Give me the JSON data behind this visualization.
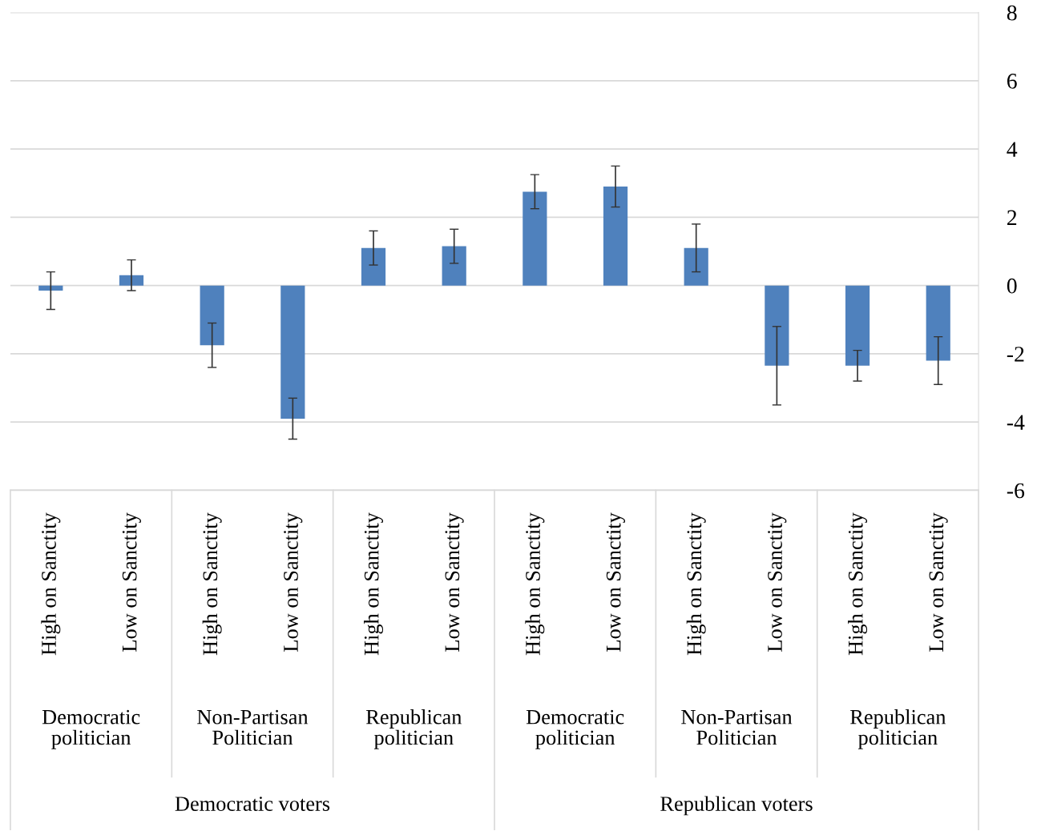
{
  "chart_data": {
    "type": "bar",
    "categories": [
      "High on Sanctity",
      "Low on Sanctity",
      "High on Sanctity",
      "Low on Sanctity",
      "High on Sanctity",
      "Low on Sanctity",
      "High on Sanctity",
      "Low on Sanctity",
      "High on Sanctity",
      "Low on Sanctity",
      "High on Sanctity",
      "Low on Sanctity"
    ],
    "values": [
      -0.15,
      0.3,
      -1.75,
      -3.9,
      1.1,
      1.15,
      2.75,
      2.9,
      1.1,
      -2.35,
      -2.35,
      -2.2
    ],
    "errors": [
      0.55,
      0.45,
      0.65,
      0.6,
      0.5,
      0.5,
      0.5,
      0.6,
      0.7,
      1.15,
      0.45,
      0.7
    ],
    "color": "#4f81bd",
    "ylim": [
      -6,
      8
    ],
    "yticks": [
      -6,
      -4,
      -2,
      0,
      2,
      4,
      6,
      8
    ],
    "grid": "y",
    "annotations": [
      "Democratic politician",
      "Non-Partisan Politician",
      "Republican politician",
      "Democratic politician",
      "Non-Partisan Politician",
      "Republican politician",
      "Democratic voters",
      "Republican voters"
    ]
  }
}
